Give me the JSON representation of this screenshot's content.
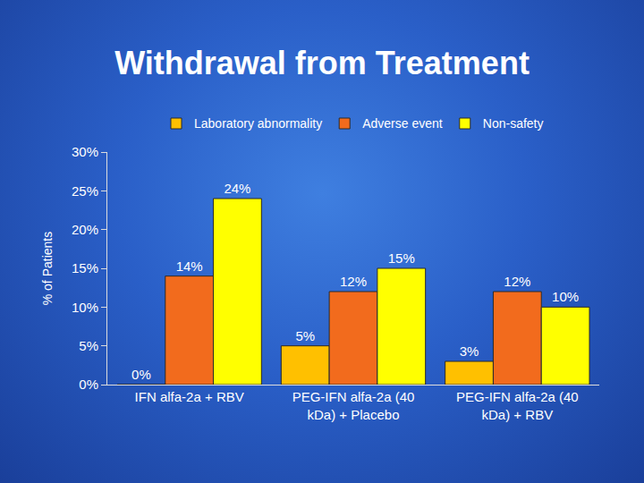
{
  "chart_data": {
    "type": "bar",
    "title": "Withdrawal from Treatment",
    "y_label": "% of Patients",
    "categories": [
      "IFN alfa-2a + RBV",
      "PEG-IFN alfa-2a (40 kDa) + Placebo",
      "PEG-IFN alfa-2a (40 kDa) + RBV"
    ],
    "series": [
      {
        "name": "Laboratory abnormality",
        "color": "#FFC000",
        "values": [
          0,
          5,
          3
        ],
        "value_labels": [
          "0%",
          "5%",
          "3%"
        ]
      },
      {
        "name": "Adverse event",
        "color": "#F26B1D",
        "values": [
          14,
          12,
          12
        ],
        "value_labels": [
          "14%",
          "12%",
          "12%"
        ]
      },
      {
        "name": "Non-safety",
        "color": "#FFFF00",
        "values": [
          24,
          15,
          10
        ],
        "value_labels": [
          "24%",
          "15%",
          "10%"
        ]
      }
    ],
    "ylim": [
      0,
      30
    ],
    "yticks": [
      {
        "value": 0,
        "label": "0%"
      },
      {
        "value": 5,
        "label": "5%"
      },
      {
        "value": 10,
        "label": "10%"
      },
      {
        "value": 15,
        "label": "15%"
      },
      {
        "value": 20,
        "label": "20%"
      },
      {
        "value": 25,
        "label": "25%"
      },
      {
        "value": 30,
        "label": "30%"
      }
    ],
    "grid": false,
    "legend": "top",
    "data_labels": true
  }
}
